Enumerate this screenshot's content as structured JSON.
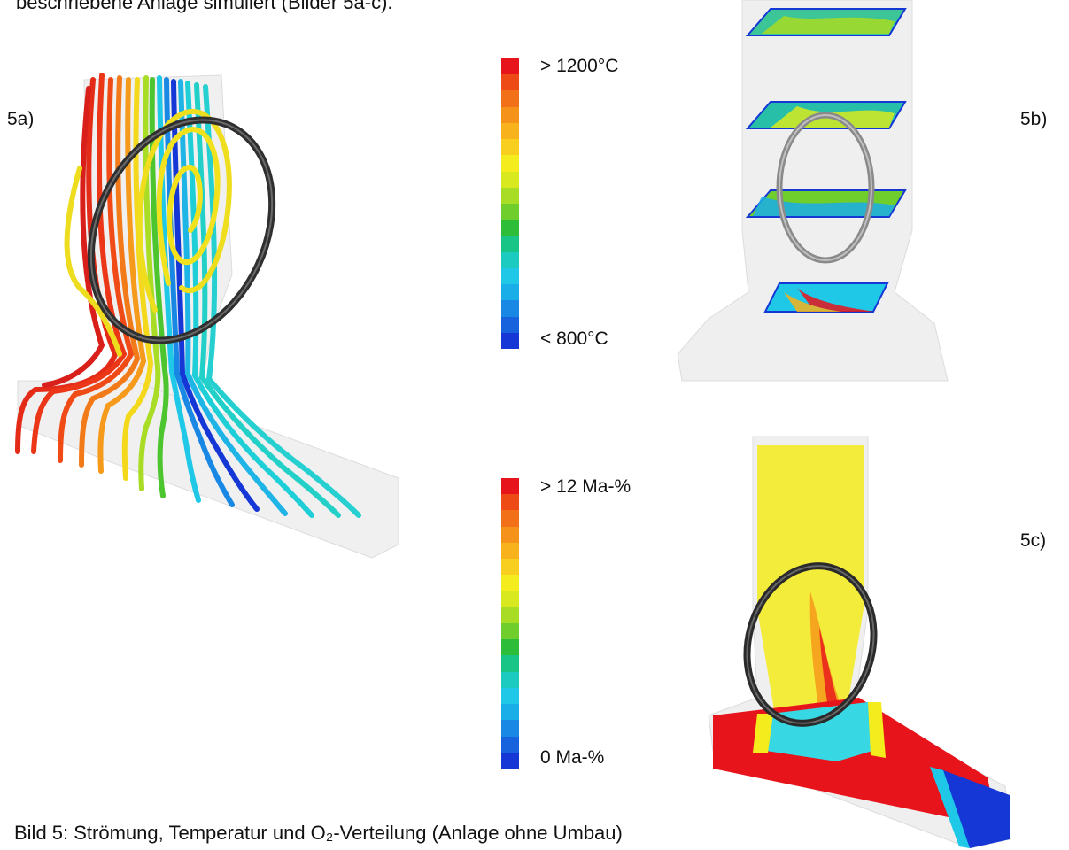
{
  "header": {
    "text": "beschriebene Anlage simuliert (Bilder 5a-c)."
  },
  "panels": {
    "a": {
      "label": "5a)"
    },
    "b": {
      "label": "5b)"
    },
    "c": {
      "label": "5c)"
    }
  },
  "temperature_legend": {
    "max_label": "> 1200°C",
    "min_label": "< 800°C",
    "colors": [
      "#e8141b",
      "#ee4a16",
      "#f27018",
      "#f4921a",
      "#f7b21c",
      "#f8cf1e",
      "#f4ec1d",
      "#d8ea1f",
      "#a8dc25",
      "#6fcd2c",
      "#2ebd38",
      "#18c486",
      "#1ccbc0",
      "#1ec8e6",
      "#1aaee8",
      "#1888e4",
      "#1763de",
      "#1537d6"
    ]
  },
  "concentration_legend": {
    "max_label": "> 12 Ma-%",
    "min_label": "0 Ma-%",
    "colors": [
      "#e8141b",
      "#ee4a16",
      "#f27018",
      "#f4921a",
      "#f7b21c",
      "#f8cf1e",
      "#f4ec1d",
      "#d8ea1f",
      "#a8dc25",
      "#6fcd2c",
      "#2ebd38",
      "#18c486",
      "#1ccbc0",
      "#1ec8e6",
      "#1aaee8",
      "#1888e4",
      "#1763de",
      "#1537d6"
    ]
  },
  "caption": {
    "text": "Bild 5: Strömung, Temperatur und O₂-Verteilung (Anlage ohne Umbau)"
  }
}
